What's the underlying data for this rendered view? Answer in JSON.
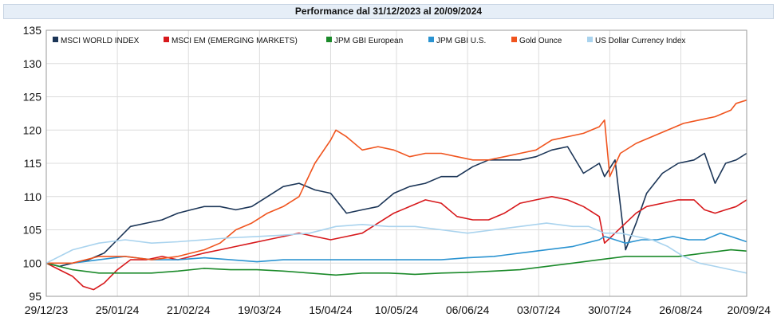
{
  "chart_data": {
    "type": "line",
    "title": "Performance dal 31/12/2023 al 20/09/2024",
    "xlabel": "",
    "ylabel": "",
    "ylim": [
      95,
      135
    ],
    "yticks": [
      95,
      100,
      105,
      110,
      115,
      120,
      125,
      130,
      135
    ],
    "x_tick_labels": [
      "29/12/23",
      "25/01/24",
      "21/02/24",
      "19/03/24",
      "15/04/24",
      "10/05/24",
      "06/06/24",
      "03/07/24",
      "30/07/24",
      "26/08/24",
      "20/09/24"
    ],
    "x_ticks_day_offsets": [
      0,
      27,
      54,
      81,
      108,
      133,
      160,
      187,
      214,
      241,
      266
    ],
    "grid": true,
    "legend_position": "top-left",
    "series": [
      {
        "name": "MSCI WORLD INDEX",
        "color": "#1b3557",
        "x": [
          0,
          5,
          10,
          16,
          22,
          27,
          32,
          38,
          44,
          50,
          55,
          60,
          66,
          72,
          78,
          84,
          90,
          96,
          102,
          108,
          114,
          120,
          126,
          132,
          138,
          144,
          150,
          156,
          162,
          168,
          174,
          180,
          186,
          192,
          198,
          204,
          210,
          212,
          216,
          220,
          224,
          228,
          234,
          240,
          246,
          250,
          254,
          258,
          262,
          266
        ],
        "values": [
          100,
          99.5,
          100,
          100.5,
          101.5,
          103.5,
          105.5,
          106,
          106.5,
          107.5,
          108,
          108.5,
          108.5,
          108,
          108.5,
          110,
          111.5,
          112,
          111,
          110.5,
          107.5,
          108,
          108.5,
          110.5,
          111.5,
          112,
          113,
          113,
          114.5,
          115.5,
          115.5,
          115.5,
          116,
          117,
          117.5,
          113.5,
          115,
          113,
          115.5,
          102,
          106,
          110.5,
          113.5,
          115,
          115.5,
          116.5,
          112,
          115,
          115.5,
          116.5
        ]
      },
      {
        "name": "MSCI EM (EMERGING MARKETS)",
        "color": "#d7191c",
        "x": [
          0,
          5,
          10,
          14,
          18,
          22,
          27,
          32,
          38,
          44,
          50,
          55,
          60,
          66,
          72,
          78,
          84,
          90,
          96,
          102,
          108,
          114,
          120,
          126,
          132,
          138,
          144,
          150,
          156,
          162,
          168,
          174,
          180,
          186,
          192,
          198,
          204,
          210,
          212,
          216,
          220,
          224,
          228,
          234,
          240,
          246,
          250,
          254,
          258,
          262,
          266
        ],
        "values": [
          100,
          99,
          98,
          96.5,
          96,
          97,
          99,
          100.5,
          100.5,
          101,
          100.5,
          101,
          101.5,
          102,
          102.5,
          103,
          103.5,
          104,
          104.5,
          104,
          103.5,
          104,
          104.5,
          106,
          107.5,
          108.5,
          109.5,
          109,
          107,
          106.5,
          106.5,
          107.5,
          109,
          109.5,
          110,
          109.5,
          108.5,
          107,
          103,
          104.5,
          106,
          107.5,
          108.5,
          109,
          109.5,
          109.5,
          108,
          107.5,
          108,
          108.5,
          109.5
        ]
      },
      {
        "name": "JPM GBI European",
        "color": "#1b8a2a",
        "x": [
          0,
          10,
          20,
          30,
          40,
          50,
          60,
          70,
          80,
          90,
          100,
          110,
          120,
          130,
          140,
          150,
          160,
          170,
          180,
          190,
          200,
          210,
          220,
          230,
          240,
          250,
          260,
          266
        ],
        "values": [
          100,
          99,
          98.5,
          98.5,
          98.5,
          98.8,
          99.2,
          99,
          99,
          98.8,
          98.5,
          98.2,
          98.5,
          98.5,
          98.3,
          98.5,
          98.6,
          98.8,
          99,
          99.5,
          100,
          100.5,
          101,
          101,
          101,
          101.5,
          102,
          101.8
        ]
      },
      {
        "name": "JPM GBI U.S.",
        "color": "#2a93d1",
        "x": [
          0,
          10,
          20,
          30,
          40,
          50,
          60,
          70,
          80,
          90,
          100,
          110,
          120,
          130,
          140,
          150,
          160,
          170,
          180,
          190,
          200,
          210,
          212,
          216,
          220,
          226,
          232,
          238,
          244,
          250,
          256,
          260,
          266
        ],
        "values": [
          100,
          100,
          100.5,
          101,
          100.5,
          100.5,
          100.8,
          100.5,
          100.2,
          100.5,
          100.5,
          100.5,
          100.5,
          100.5,
          100.5,
          100.5,
          100.8,
          101,
          101.5,
          102,
          102.5,
          103.5,
          104,
          103.5,
          103,
          103.5,
          103.5,
          104,
          103.5,
          103.5,
          104.5,
          104,
          103.2
        ]
      },
      {
        "name": "Gold Ounce",
        "color": "#f0541e",
        "x": [
          0,
          10,
          20,
          30,
          40,
          50,
          60,
          66,
          72,
          78,
          84,
          90,
          96,
          102,
          108,
          110,
          114,
          120,
          126,
          132,
          138,
          144,
          150,
          156,
          162,
          168,
          174,
          180,
          186,
          192,
          198,
          204,
          210,
          212,
          214,
          218,
          224,
          230,
          236,
          242,
          248,
          254,
          260,
          262,
          266
        ],
        "values": [
          100,
          100,
          101,
          101,
          100.5,
          101,
          102,
          103,
          105,
          106,
          107.5,
          108.5,
          110,
          115,
          118.5,
          120,
          119,
          117,
          117.5,
          117,
          116,
          116.5,
          116.5,
          116,
          115.5,
          115.5,
          116,
          116.5,
          117,
          118.5,
          119,
          119.5,
          120.5,
          121.5,
          113,
          116.5,
          118,
          119,
          120,
          121,
          121.5,
          122,
          123,
          124,
          124.5
        ]
      },
      {
        "name": "US Dollar Currency Index",
        "color": "#a9d3ee",
        "x": [
          0,
          10,
          20,
          30,
          40,
          50,
          60,
          70,
          80,
          90,
          100,
          110,
          120,
          130,
          140,
          150,
          160,
          170,
          180,
          190,
          200,
          206,
          212,
          218,
          224,
          230,
          236,
          242,
          248,
          254,
          260,
          266
        ],
        "values": [
          100,
          102,
          103,
          103.5,
          103,
          103.2,
          103.5,
          103.8,
          104,
          104.2,
          104.5,
          105.5,
          105.8,
          105.5,
          105.5,
          105,
          104.5,
          105,
          105.5,
          106,
          105.5,
          105.5,
          104.5,
          104.5,
          104,
          103.5,
          102.5,
          101,
          100,
          99.5,
          99,
          98.5
        ]
      }
    ]
  }
}
